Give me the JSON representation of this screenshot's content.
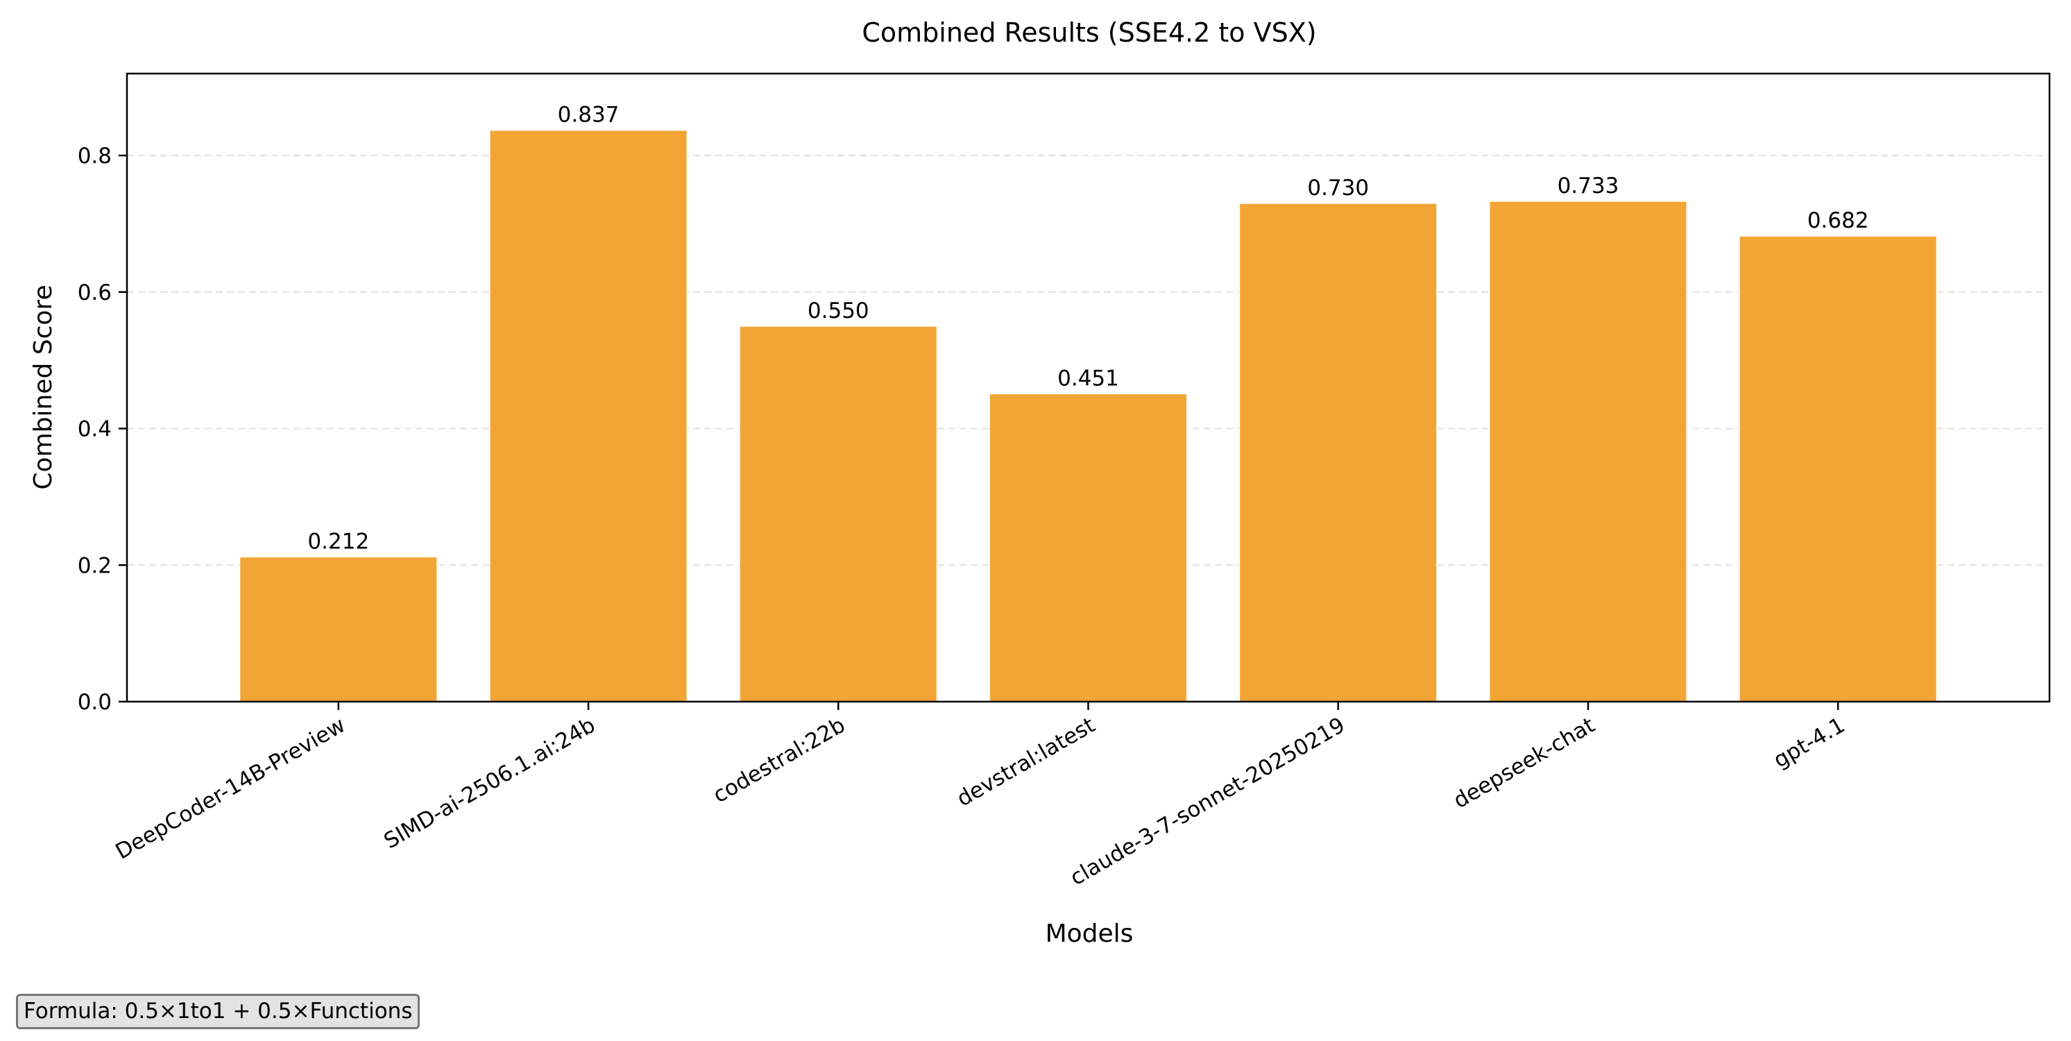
{
  "chart_data": {
    "type": "bar",
    "title": "Combined Results (SSE4.2 to VSX)",
    "xlabel": "Models",
    "ylabel": "Combined Score",
    "categories": [
      "DeepCoder-14B-Preview",
      "SIMD-ai-2506.1.ai:24b",
      "codestral:22b",
      "devstral:latest",
      "claude-3-7-sonnet-20250219",
      "deepseek-chat",
      "gpt-4.1"
    ],
    "values": [
      0.212,
      0.837,
      0.55,
      0.451,
      0.73,
      0.733,
      0.682
    ],
    "value_labels": [
      "0.212",
      "0.837",
      "0.550",
      "0.451",
      "0.730",
      "0.733",
      "0.682"
    ],
    "ylim": [
      0,
      0.92
    ],
    "yticks": [
      0.0,
      0.2,
      0.4,
      0.6,
      0.8
    ],
    "ytick_labels": [
      "0.0",
      "0.2",
      "0.4",
      "0.6",
      "0.8"
    ],
    "grid": "horizontal dashed",
    "bar_color": "#f2a535"
  },
  "annotation": {
    "formula": "Formula: 0.5×1to1 + 0.5×Functions"
  }
}
